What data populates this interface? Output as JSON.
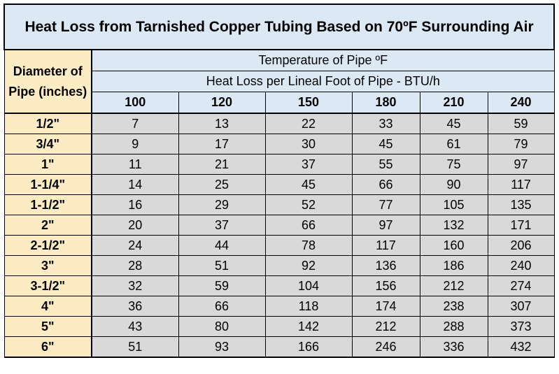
{
  "title": "Heat Loss from Tarnished Copper Tubing Based on 70ºF Surrounding Air",
  "diameter_header": "Diameter of Pipe (inches)",
  "temperature_header": "Temperature of Pipe  ºF",
  "subheader": "Heat Loss per Lineal Foot of Pipe - BTU/h",
  "temperatures": [
    "100",
    "120",
    "150",
    "180",
    "210",
    "240"
  ],
  "rows": [
    {
      "diameter": "1/2\"",
      "values": [
        "7",
        "13",
        "22",
        "33",
        "45",
        "59"
      ]
    },
    {
      "diameter": "3/4\"",
      "values": [
        "9",
        "17",
        "30",
        "45",
        "61",
        "79"
      ]
    },
    {
      "diameter": "1\"",
      "values": [
        "11",
        "21",
        "37",
        "55",
        "75",
        "97"
      ]
    },
    {
      "diameter": "1-1/4\"",
      "values": [
        "14",
        "25",
        "45",
        "66",
        "90",
        "117"
      ]
    },
    {
      "diameter": "1-1/2\"",
      "values": [
        "16",
        "29",
        "52",
        "77",
        "105",
        "135"
      ]
    },
    {
      "diameter": "2\"",
      "values": [
        "20",
        "37",
        "66",
        "97",
        "132",
        "171"
      ]
    },
    {
      "diameter": "2-1/2\"",
      "values": [
        "24",
        "44",
        "78",
        "117",
        "160",
        "206"
      ]
    },
    {
      "diameter": "3\"",
      "values": [
        "28",
        "51",
        "92",
        "136",
        "186",
        "240"
      ]
    },
    {
      "diameter": "3-1/2\"",
      "values": [
        "32",
        "59",
        "104",
        "156",
        "212",
        "274"
      ]
    },
    {
      "diameter": "4\"",
      "values": [
        "36",
        "66",
        "118",
        "174",
        "238",
        "307"
      ]
    },
    {
      "diameter": "5\"",
      "values": [
        "43",
        "80",
        "142",
        "212",
        "288",
        "373"
      ]
    },
    {
      "diameter": "6\"",
      "values": [
        "51",
        "93",
        "166",
        "246",
        "336",
        "432"
      ]
    }
  ],
  "colors": {
    "title_bg": "#dce9f5",
    "diameter_bg": "#fdebc4",
    "value_bg": "#d9d9d9",
    "border": "#000000"
  }
}
